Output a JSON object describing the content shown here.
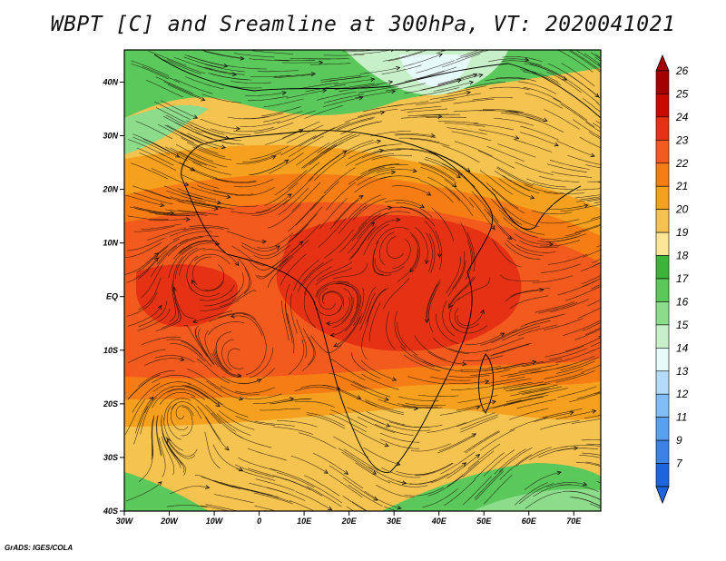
{
  "title": "WBPT [C] and Sreamline at 300hPa, VT: 2020041021",
  "credit": "GrADS: IGES/COLA",
  "map": {
    "lon_range": [
      -30,
      76
    ],
    "lat_range": [
      -40,
      46
    ],
    "lat_ticks": [
      {
        "value": 40,
        "label": "40N"
      },
      {
        "value": 30,
        "label": "30N"
      },
      {
        "value": 20,
        "label": "20N"
      },
      {
        "value": 10,
        "label": "10N"
      },
      {
        "value": 0,
        "label": "EQ"
      },
      {
        "value": -10,
        "label": "10S"
      },
      {
        "value": -20,
        "label": "20S"
      },
      {
        "value": -30,
        "label": "30S"
      },
      {
        "value": -40,
        "label": "40S"
      }
    ],
    "lon_ticks": [
      {
        "value": -30,
        "label": "30W"
      },
      {
        "value": -20,
        "label": "20W"
      },
      {
        "value": -10,
        "label": "10W"
      },
      {
        "value": 0,
        "label": "0"
      },
      {
        "value": 10,
        "label": "10E"
      },
      {
        "value": 20,
        "label": "20E"
      },
      {
        "value": 30,
        "label": "30E"
      },
      {
        "value": 40,
        "label": "40E"
      },
      {
        "value": 50,
        "label": "50E"
      },
      {
        "value": 60,
        "label": "60E"
      },
      {
        "value": 70,
        "label": "70E"
      }
    ]
  },
  "colorbar": {
    "levels": [
      {
        "label": "26",
        "color": "#a50000"
      },
      {
        "label": "25",
        "color": "#c80a00"
      },
      {
        "label": "24",
        "color": "#e63214"
      },
      {
        "label": "23",
        "color": "#f25a1e"
      },
      {
        "label": "22",
        "color": "#f57d14"
      },
      {
        "label": "21",
        "color": "#f5a01e"
      },
      {
        "label": "20",
        "color": "#f5c350"
      },
      {
        "label": "19",
        "color": "#fae696"
      },
      {
        "label": "18",
        "color": "#3cb43c"
      },
      {
        "label": "17",
        "color": "#5ac85a"
      },
      {
        "label": "16",
        "color": "#8cdc8c"
      },
      {
        "label": "15",
        "color": "#c8f0c8"
      },
      {
        "label": "14",
        "color": "#e6fafa"
      },
      {
        "label": "13",
        "color": "#b4dcfa"
      },
      {
        "label": "12",
        "color": "#82bef5"
      },
      {
        "label": "11",
        "color": "#5aa0f0"
      },
      {
        "label": "9",
        "color": "#3c82e6"
      },
      {
        "label": "7",
        "color": "#1e64dc"
      }
    ]
  },
  "field": {
    "bands": [
      {
        "color": "#f5c350"
      },
      {
        "color": "#f5a01e"
      },
      {
        "color": "#f57d14"
      },
      {
        "color": "#f25a1e"
      },
      {
        "color": "#e63214"
      }
    ]
  }
}
